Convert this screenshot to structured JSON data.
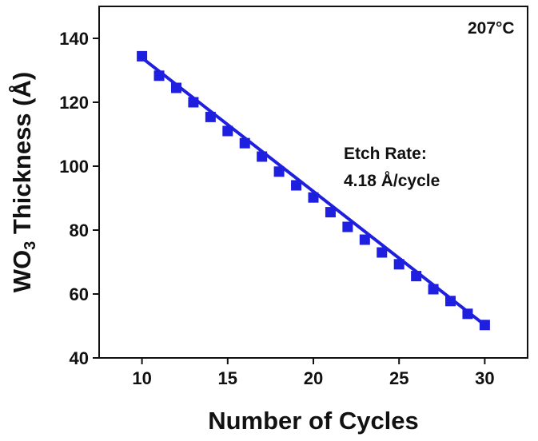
{
  "chart_data": {
    "type": "line",
    "title": "",
    "xlabel": "Number of Cycles",
    "ylabel": {
      "main": "WO",
      "sub": "3",
      "rest": " Thickness (Å)"
    },
    "xlim": [
      7.5,
      32.5
    ],
    "ylim": [
      40,
      150
    ],
    "xticks": [
      10,
      15,
      20,
      25,
      30
    ],
    "yticks": [
      40,
      60,
      80,
      100,
      120,
      140
    ],
    "x_tick_labels": [
      "10",
      "15",
      "20",
      "25",
      "30"
    ],
    "y_tick_labels": [
      "40",
      "60",
      "80",
      "100",
      "120",
      "140"
    ],
    "grid": false,
    "legend": "none",
    "series": [
      {
        "marker": "square",
        "color": "#1f1fe0",
        "x": [
          10,
          11,
          12,
          13,
          14,
          15,
          16,
          17,
          18,
          19,
          20,
          21,
          22,
          23,
          24,
          25,
          26,
          27,
          28,
          29,
          30
        ],
        "y": [
          134.4,
          128.3,
          124.5,
          120.0,
          115.4,
          111.0,
          107.2,
          103.0,
          98.3,
          94.0,
          90.2,
          85.6,
          81.0,
          77.0,
          73.0,
          69.3,
          65.6,
          61.5,
          57.8,
          53.8,
          50.3
        ]
      }
    ],
    "fit_line": {
      "color": "#1f1fe0",
      "x": [
        10,
        30
      ],
      "y": [
        133.9,
        50.3
      ]
    },
    "annotations": {
      "temperature": "207°C",
      "etch_rate_title": "Etch Rate:",
      "etch_rate_value": "4.18 Å/cycle"
    }
  }
}
